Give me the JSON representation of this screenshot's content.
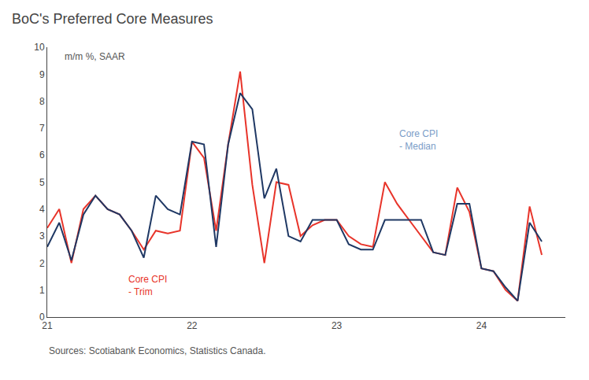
{
  "chart_data": {
    "type": "line",
    "title": "BoC's Preferred Core Measures",
    "subtitle": "m/m %, SAAR",
    "source": "Sources: Scotiabank Economics, Statistics Canada.",
    "x": [
      21.0,
      21.083,
      21.167,
      21.25,
      21.333,
      21.417,
      21.5,
      21.583,
      21.667,
      21.75,
      21.833,
      21.917,
      22.0,
      22.083,
      22.167,
      22.25,
      22.333,
      22.417,
      22.5,
      22.583,
      22.667,
      22.75,
      22.833,
      22.917,
      23.0,
      23.083,
      23.167,
      23.25,
      23.333,
      23.417,
      23.5,
      23.583,
      23.667,
      23.75,
      23.833,
      23.917,
      24.0,
      24.083,
      24.167,
      24.25,
      24.333,
      24.417
    ],
    "series": [
      {
        "color": "#e8342a",
        "values": [
          3.3,
          4.0,
          2.0,
          4.0,
          4.5,
          4.0,
          3.8,
          3.2,
          2.5,
          3.2,
          3.1,
          3.2,
          6.5,
          5.9,
          3.2,
          6.4,
          9.1,
          4.9,
          2.0,
          5.0,
          4.9,
          3.0,
          3.4,
          3.6,
          3.6,
          3.0,
          2.7,
          2.6,
          5.0,
          4.2,
          3.6,
          3.0,
          2.4,
          2.3,
          4.8,
          3.9,
          1.8,
          1.7,
          1.0,
          0.6,
          4.1,
          2.3
        ]
      },
      {
        "color": "#1f3864",
        "values": [
          2.6,
          3.5,
          2.1,
          3.8,
          4.5,
          4.0,
          3.8,
          3.2,
          2.2,
          4.5,
          4.0,
          3.8,
          6.5,
          6.4,
          2.6,
          6.4,
          8.3,
          7.7,
          4.4,
          5.5,
          3.0,
          2.8,
          3.6,
          3.6,
          3.6,
          2.7,
          2.5,
          2.5,
          3.6,
          3.6,
          3.6,
          3.6,
          2.4,
          2.3,
          4.2,
          4.2,
          1.8,
          1.7,
          1.1,
          0.6,
          3.5,
          2.8
        ]
      }
    ],
    "annotations": [
      {
        "text": "Core CPI\n- Trim",
        "x": 21.55,
        "y": 1.65,
        "color": "#e8342a"
      },
      {
        "text": "Core CPI\n- Median",
        "x": 23.42,
        "y": 7.05,
        "color": "#7b9dc8"
      }
    ],
    "xlim": [
      21.0,
      24.58
    ],
    "xticks": [
      21,
      22,
      23,
      24
    ],
    "ylim": [
      0,
      10
    ],
    "yticks": [
      0,
      1,
      2,
      3,
      4,
      5,
      6,
      7,
      8,
      9,
      10
    ],
    "grid": false
  }
}
